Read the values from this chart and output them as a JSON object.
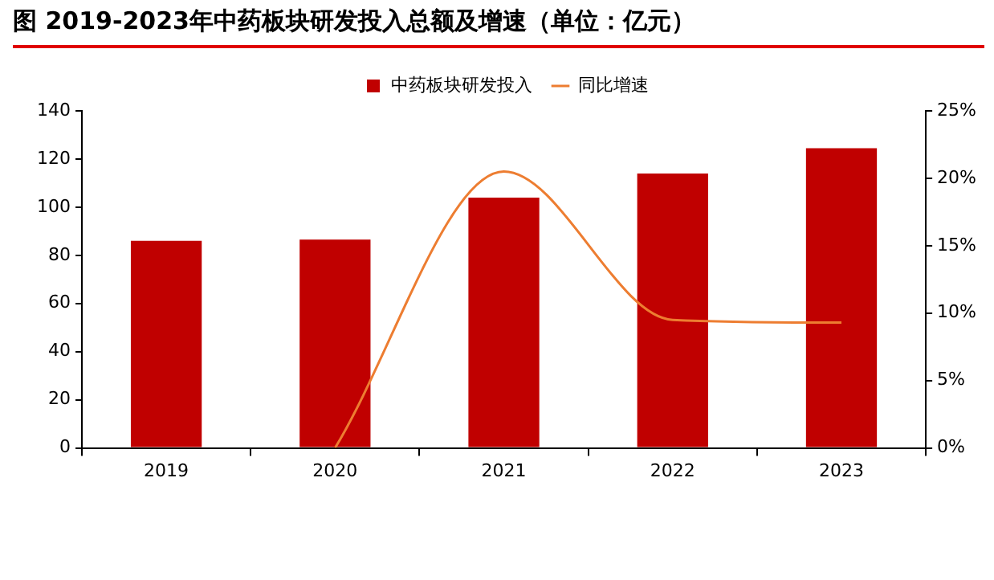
{
  "chart_data": {
    "type": "bar",
    "title": "图 2019-2023年中药板块研发投入总额及增速（单位：亿元）",
    "categories": [
      "2019",
      "2020",
      "2021",
      "2022",
      "2023"
    ],
    "series": [
      {
        "name": "中药板块研发投入",
        "color": "#c00000",
        "values": [
          86,
          86.5,
          104,
          114,
          124.5
        ]
      },
      {
        "name": "同比增速",
        "type": "line",
        "axis": "y2",
        "color": "#ed7d31",
        "values": [
          null,
          0,
          20.5,
          9.5,
          9.3
        ]
      }
    ],
    "ylim": [
      0,
      140
    ],
    "yticks": [
      0,
      20,
      40,
      60,
      80,
      100,
      120,
      140
    ],
    "y2lim": [
      0,
      25
    ],
    "y2ticks": [
      {
        "value": 0,
        "label": "0%"
      },
      {
        "value": 5,
        "label": "5%"
      },
      {
        "value": 10,
        "label": "10%"
      },
      {
        "value": 15,
        "label": "15%"
      },
      {
        "value": 20,
        "label": "20%"
      },
      {
        "value": 25,
        "label": "25%"
      }
    ],
    "grid": false,
    "legend": "top",
    "marker": "none",
    "line_style": "solid"
  }
}
